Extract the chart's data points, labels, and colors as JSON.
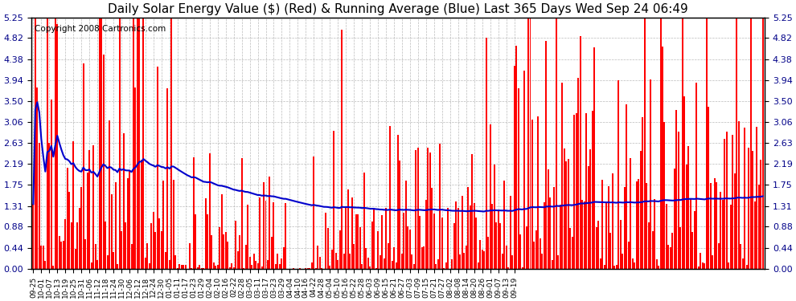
{
  "title": "Daily Solar Energy Value ($) (Red) & Running Average (Blue) Last 365 Days Wed Sep 24 06:49",
  "copyright_text": "Copyright 2008 Cartronics.com",
  "ylim": [
    0.0,
    5.25
  ],
  "yticks": [
    0.0,
    0.44,
    0.88,
    1.31,
    1.75,
    2.19,
    2.63,
    3.06,
    3.5,
    3.94,
    4.38,
    4.82,
    5.25
  ],
  "bar_color": "#ff0000",
  "avg_color": "#0000cc",
  "bg_color": "#ffffff",
  "grid_color": "#aaaaaa",
  "title_fontsize": 11,
  "copyright_fontsize": 7.5,
  "n_days": 365,
  "seed": 42,
  "x_tick_interval": 4,
  "xtick_labels": [
    "09-25",
    "10-01",
    "10-07",
    "10-13",
    "10-19",
    "10-25",
    "10-31",
    "11-06",
    "11-12",
    "11-18",
    "11-24",
    "11-30",
    "12-06",
    "12-12",
    "12-18",
    "12-24",
    "12-30",
    "01-05",
    "01-11",
    "01-17",
    "01-23",
    "01-29",
    "02-04",
    "02-10",
    "02-16",
    "02-22",
    "02-28",
    "03-05",
    "03-11",
    "03-17",
    "03-23",
    "03-29",
    "04-04",
    "04-10",
    "04-16",
    "04-22",
    "04-28",
    "05-04",
    "05-10",
    "05-16",
    "05-22",
    "05-28",
    "06-03",
    "06-09",
    "06-15",
    "06-21",
    "06-27",
    "07-03",
    "07-09",
    "07-15",
    "07-21",
    "07-27",
    "08-02",
    "08-08",
    "08-14",
    "08-20",
    "08-26",
    "09-01",
    "09-07",
    "09-13",
    "09-19"
  ]
}
